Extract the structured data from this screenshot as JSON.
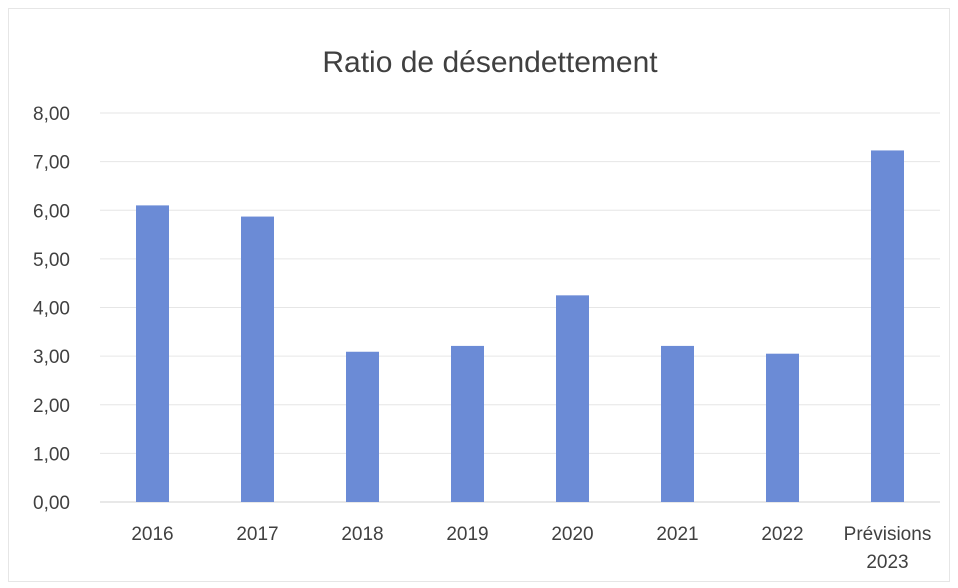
{
  "chart_data": {
    "type": "bar",
    "title": "Ratio de désendettement",
    "xlabel": "",
    "ylabel": "",
    "categories": [
      "2016",
      "2017",
      "2018",
      "2019",
      "2020",
      "2021",
      "2022",
      "Prévisions 2023"
    ],
    "series": [
      {
        "values": [
          6.1,
          5.87,
          3.09,
          3.21,
          4.25,
          3.21,
          3.05,
          7.23
        ]
      }
    ],
    "ylim": [
      0,
      8
    ],
    "yticks": [
      "0,00",
      "1,00",
      "2,00",
      "3,00",
      "4,00",
      "5,00",
      "6,00",
      "7,00",
      "8,00"
    ],
    "grid": true,
    "legend": "none",
    "bar_color": "#6b8bd6"
  }
}
